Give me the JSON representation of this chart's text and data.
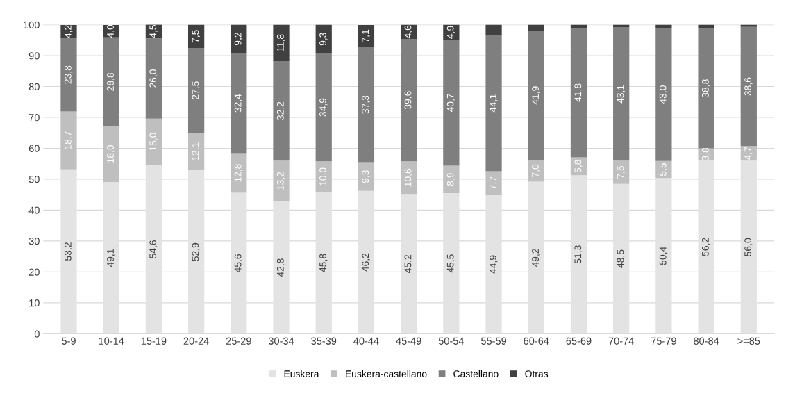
{
  "chart_data": {
    "type": "bar",
    "stacked": true,
    "categories": [
      "5-9",
      "10-14",
      "15-19",
      "20-24",
      "25-29",
      "30-34",
      "35-39",
      "40-44",
      "45-49",
      "50-54",
      "55-59",
      "60-64",
      "65-69",
      "70-74",
      "75-79",
      "80-84",
      ">=85"
    ],
    "series": [
      {
        "name": "Euskera",
        "color": "#e3e3e3",
        "values": [
          53.2,
          49.1,
          54.6,
          52.9,
          45.6,
          42.8,
          45.8,
          46.2,
          45.2,
          45.5,
          44.9,
          49.2,
          51.3,
          48.5,
          50.4,
          56.2,
          56.0
        ],
        "value_labels": [
          "53,2",
          "49,1",
          "54,6",
          "52,9",
          "45,6",
          "42,8",
          "45,8",
          "46,2",
          "45,2",
          "45,5",
          "44,9",
          "49,2",
          "51,3",
          "48,5",
          "50,4",
          "56,2",
          "56,0"
        ]
      },
      {
        "name": "Euskera-castellano",
        "color": "#bfbfbf",
        "values": [
          18.7,
          18.0,
          15.0,
          12.1,
          12.8,
          13.2,
          10.0,
          9.3,
          10.6,
          8.9,
          7.7,
          7.0,
          5.8,
          7.5,
          5.5,
          3.8,
          4.7
        ],
        "value_labels": [
          "18,7",
          "18,0",
          "15,0",
          "12,1",
          "12,8",
          "13,2",
          "10,0",
          "9,3",
          "10,6",
          "8,9",
          "7,7",
          "7,0",
          "5,8",
          "7,5",
          "5,5",
          "3,8",
          "4,7"
        ]
      },
      {
        "name": "Castellano",
        "color": "#7f7f7f",
        "values": [
          23.8,
          28.8,
          26.0,
          27.5,
          32.4,
          32.2,
          34.9,
          37.3,
          39.6,
          40.7,
          44.1,
          41.9,
          41.8,
          43.1,
          43.0,
          38.8,
          38.6
        ],
        "value_labels": [
          "23,8",
          "28,8",
          "26,0",
          "27,5",
          "32,4",
          "32,2",
          "34,9",
          "37,3",
          "39,6",
          "40,7",
          "44,1",
          "41,9",
          "41,8",
          "43,1",
          "43,0",
          "38,8",
          "38,6"
        ]
      },
      {
        "name": "Otras",
        "color": "#404040",
        "values": [
          4.2,
          4.0,
          4.5,
          7.5,
          9.2,
          11.8,
          9.3,
          7.1,
          4.6,
          4.9,
          3.3,
          1.9,
          1.1,
          0.9,
          1.1,
          1.2,
          0.7
        ],
        "value_labels": [
          "4,2",
          "4,0",
          "4,5",
          "7,5",
          "9,2",
          "11,8",
          "9,3",
          "7,1",
          "4,6",
          "4,9",
          null,
          null,
          null,
          null,
          null,
          null,
          null
        ]
      }
    ],
    "ylim": [
      0,
      100
    ],
    "yticks": [
      0,
      10,
      20,
      30,
      40,
      50,
      60,
      70,
      80,
      90,
      100
    ],
    "grid": "y",
    "legend": "bottom"
  }
}
